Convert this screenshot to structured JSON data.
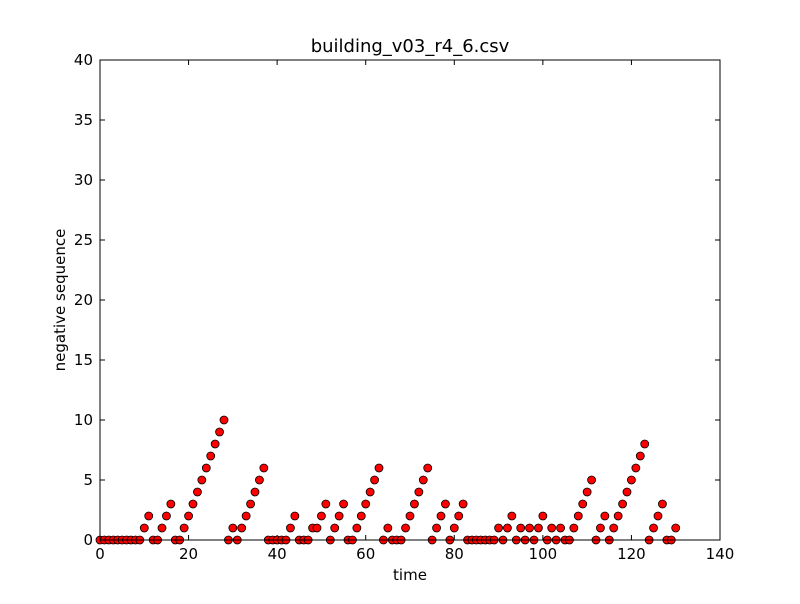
{
  "chart_data": {
    "type": "scatter",
    "title": "building_v03_r4_6.csv",
    "xlabel": "time",
    "ylabel": "negative sequence",
    "xlim": [
      0,
      140
    ],
    "ylim": [
      0,
      40
    ],
    "xticks": [
      0,
      20,
      40,
      60,
      80,
      100,
      120,
      140
    ],
    "yticks": [
      0,
      5,
      10,
      15,
      20,
      25,
      30,
      35,
      40
    ],
    "xtick_labels": [
      "0",
      "20",
      "40",
      "60",
      "80",
      "100",
      "120",
      "140"
    ],
    "ytick_labels": [
      "0",
      "5",
      "10",
      "15",
      "20",
      "25",
      "30",
      "35",
      "40"
    ],
    "grid": false,
    "marker_color": "#ff0000",
    "marker_edge_color": "#000000",
    "series": [
      {
        "x": [
          0,
          1,
          2,
          3,
          4,
          5,
          6,
          7,
          8,
          9,
          10,
          11,
          12,
          13,
          14,
          15,
          16,
          17,
          18,
          19,
          20,
          21,
          22,
          23,
          24,
          25,
          26,
          27,
          28,
          29,
          30,
          31,
          32,
          33,
          34,
          35,
          36,
          37,
          38,
          39,
          40,
          41,
          42,
          43,
          44,
          45,
          46,
          47,
          48,
          49,
          50,
          51,
          52,
          53,
          54,
          55,
          56,
          57,
          58,
          59,
          60,
          61,
          62,
          63,
          64,
          65,
          66,
          67,
          68,
          69,
          70,
          71,
          72,
          73,
          74,
          75,
          76,
          77,
          78,
          79,
          80,
          81,
          82,
          83,
          84,
          85,
          86,
          87,
          88,
          89,
          90,
          91,
          92,
          93,
          94,
          95,
          96,
          97,
          98,
          99,
          100,
          101,
          102,
          103,
          104,
          105,
          106,
          107,
          108,
          109,
          110,
          111,
          112,
          113,
          114,
          115,
          116,
          117,
          118,
          119,
          120,
          121,
          122,
          123,
          124,
          125,
          126,
          127,
          128,
          129,
          130
        ],
        "y": [
          0,
          0,
          0,
          0,
          0,
          0,
          0,
          0,
          0,
          0,
          1,
          2,
          0,
          0,
          1,
          2,
          3,
          0,
          0,
          1,
          2,
          3,
          4,
          5,
          6,
          7,
          8,
          9,
          10,
          0,
          1,
          0,
          1,
          2,
          3,
          4,
          5,
          6,
          0,
          0,
          0,
          0,
          0,
          1,
          2,
          0,
          0,
          0,
          1,
          1,
          2,
          3,
          0,
          1,
          2,
          3,
          0,
          0,
          1,
          2,
          3,
          4,
          5,
          6,
          0,
          1,
          0,
          0,
          0,
          1,
          2,
          3,
          4,
          5,
          6,
          0,
          1,
          2,
          3,
          0,
          1,
          2,
          3,
          0,
          0,
          0,
          0,
          0,
          0,
          0,
          1,
          0,
          1,
          2,
          0,
          1,
          0,
          1,
          0,
          1,
          2,
          0,
          1,
          0,
          1,
          0,
          0,
          1,
          2,
          3,
          4,
          5,
          0,
          1,
          2,
          0,
          1,
          2,
          3,
          4,
          5,
          6,
          7,
          8,
          0,
          1,
          2,
          3,
          0,
          0,
          1
        ]
      }
    ]
  }
}
